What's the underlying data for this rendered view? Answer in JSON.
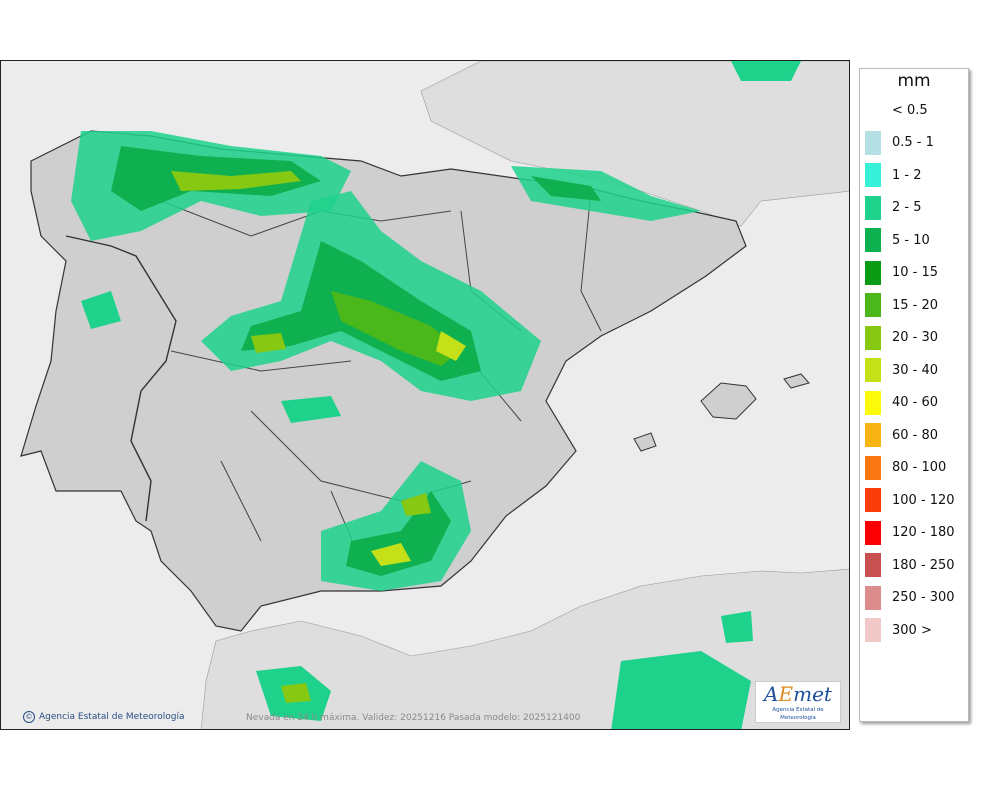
{
  "map": {
    "credit": "Agencia Estatal de Meteorología",
    "footer": "Nevada en 24 h máxima. Validez: 20251216 Pasada modelo: 2025121400",
    "logo": {
      "mark_a": "A",
      "mark_e": "E",
      "mark_rest": "met",
      "subtitle": "Agencia Estatal de Meteorología"
    },
    "colors": {
      "sea": "#ececec",
      "land": "#cfcfcf",
      "border": "#333333"
    }
  },
  "legend": {
    "title": "mm",
    "items": [
      {
        "label": "< 0.5",
        "color": "#ffffff"
      },
      {
        "label": "0.5 - 1",
        "color": "#b4e0e4"
      },
      {
        "label": "1 - 2",
        "color": "#37f0d8"
      },
      {
        "label": "2 - 5",
        "color": "#1ed28c"
      },
      {
        "label": "5 - 10",
        "color": "#0fb050"
      },
      {
        "label": "10 - 15",
        "color": "#0a9a14"
      },
      {
        "label": "15 - 20",
        "color": "#4ab81a"
      },
      {
        "label": "20 - 30",
        "color": "#86c812"
      },
      {
        "label": "30 - 40",
        "color": "#c4e018"
      },
      {
        "label": "40 - 60",
        "color": "#fafa0a"
      },
      {
        "label": "60 - 80",
        "color": "#fab414"
      },
      {
        "label": "80 - 100",
        "color": "#fa7814"
      },
      {
        "label": "100 - 120",
        "color": "#fa3c0a"
      },
      {
        "label": "120 - 180",
        "color": "#fa0000"
      },
      {
        "label": "180 - 250",
        "color": "#c85050"
      },
      {
        "label": "250 - 300",
        "color": "#dc8c8c"
      },
      {
        "label": "300 >",
        "color": "#f0c8c8"
      }
    ]
  }
}
